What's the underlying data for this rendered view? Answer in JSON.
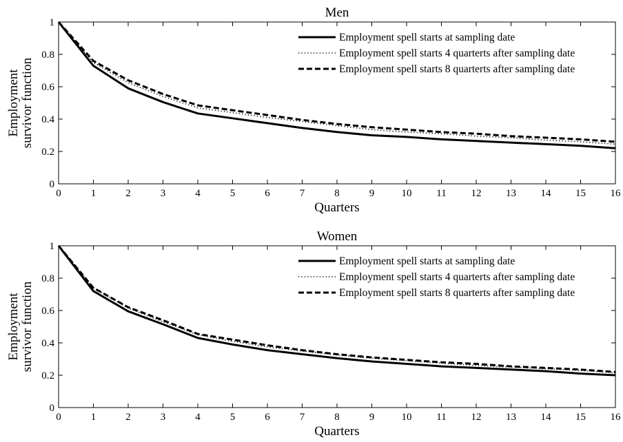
{
  "chart_data": [
    {
      "type": "line",
      "title": "Men",
      "xlabel": "Quarters",
      "ylabel": [
        "Employment",
        "survivor function"
      ],
      "xlim": [
        0,
        16
      ],
      "ylim": [
        0,
        1
      ],
      "xticks": [
        0,
        1,
        2,
        3,
        4,
        5,
        6,
        7,
        8,
        9,
        10,
        11,
        12,
        13,
        14,
        15,
        16
      ],
      "yticks": [
        0,
        0.2,
        0.4,
        0.6,
        0.8,
        1
      ],
      "ytick_labels": [
        "0",
        "0.2",
        "0.4",
        "0.6",
        "0.8",
        "1"
      ],
      "grid": false,
      "legend_position": "top-right",
      "x": [
        0,
        1,
        2,
        3,
        4,
        5,
        6,
        7,
        8,
        9,
        10,
        11,
        12,
        13,
        14,
        15,
        16
      ],
      "series": [
        {
          "name": "Employment spell starts at sampling date",
          "style": "solid",
          "values": [
            1.0,
            0.73,
            0.59,
            0.505,
            0.435,
            0.405,
            0.375,
            0.345,
            0.32,
            0.3,
            0.29,
            0.275,
            0.265,
            0.255,
            0.245,
            0.235,
            0.22
          ]
        },
        {
          "name": "Employment spell starts 4 quarterts after sampling date",
          "style": "dotted",
          "values": [
            1.0,
            0.75,
            0.625,
            0.54,
            0.47,
            0.44,
            0.41,
            0.385,
            0.36,
            0.335,
            0.32,
            0.31,
            0.295,
            0.285,
            0.27,
            0.26,
            0.245
          ]
        },
        {
          "name": "Employment spell starts 8 quarterts after sampling date",
          "style": "dashed",
          "values": [
            1.0,
            0.76,
            0.64,
            0.555,
            0.485,
            0.455,
            0.425,
            0.395,
            0.37,
            0.35,
            0.335,
            0.32,
            0.31,
            0.295,
            0.285,
            0.275,
            0.26
          ]
        }
      ]
    },
    {
      "type": "line",
      "title": "Women",
      "xlabel": "Quarters",
      "ylabel": [
        "Employment",
        "survivor function"
      ],
      "xlim": [
        0,
        16
      ],
      "ylim": [
        0,
        1
      ],
      "xticks": [
        0,
        1,
        2,
        3,
        4,
        5,
        6,
        7,
        8,
        9,
        10,
        11,
        12,
        13,
        14,
        15,
        16
      ],
      "yticks": [
        0,
        0.2,
        0.4,
        0.6,
        0.8,
        1
      ],
      "ytick_labels": [
        "0",
        "0.2",
        "0.4",
        "0.6",
        "0.8",
        "1"
      ],
      "grid": false,
      "legend_position": "top-right",
      "x": [
        0,
        1,
        2,
        3,
        4,
        5,
        6,
        7,
        8,
        9,
        10,
        11,
        12,
        13,
        14,
        15,
        16
      ],
      "series": [
        {
          "name": "Employment spell starts at sampling date",
          "style": "solid",
          "values": [
            1.0,
            0.72,
            0.595,
            0.515,
            0.43,
            0.39,
            0.355,
            0.33,
            0.305,
            0.285,
            0.27,
            0.255,
            0.245,
            0.235,
            0.225,
            0.21,
            0.2
          ]
        },
        {
          "name": "Employment spell starts 4 quarterts after sampling date",
          "style": "dotted",
          "values": [
            1.0,
            0.74,
            0.615,
            0.53,
            0.45,
            0.41,
            0.375,
            0.35,
            0.325,
            0.305,
            0.29,
            0.275,
            0.26,
            0.25,
            0.24,
            0.23,
            0.215
          ]
        },
        {
          "name": "Employment spell starts 8 quarterts after sampling date",
          "style": "dashed",
          "values": [
            1.0,
            0.74,
            0.62,
            0.54,
            0.455,
            0.42,
            0.385,
            0.355,
            0.33,
            0.31,
            0.295,
            0.28,
            0.27,
            0.255,
            0.245,
            0.235,
            0.22
          ]
        }
      ]
    }
  ]
}
